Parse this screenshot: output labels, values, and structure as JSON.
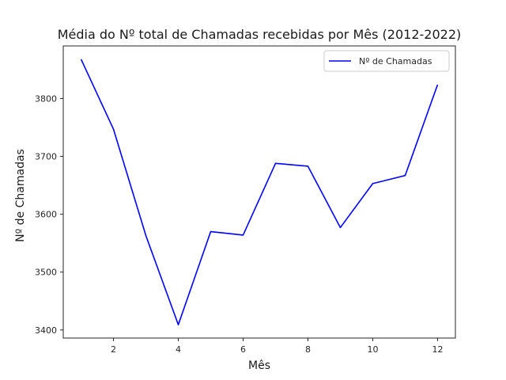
{
  "chart_data": {
    "type": "line",
    "title": "Média do Nº total de Chamadas recebidas por Mês (2012-2022)",
    "xlabel": "Mês",
    "ylabel": "Nº de Chamadas",
    "x": [
      1,
      2,
      3,
      4,
      5,
      6,
      7,
      8,
      9,
      10,
      11,
      12
    ],
    "series": [
      {
        "name": "Nº de Chamadas",
        "color": "#0000ff",
        "values": [
          3868,
          3747,
          3563,
          3409,
          3570,
          3564,
          3688,
          3683,
          3577,
          3653,
          3667,
          3824
        ]
      }
    ],
    "xlim": [
      0.45,
      12.55
    ],
    "ylim": [
      3386,
      3891
    ],
    "xticks": [
      2,
      4,
      6,
      8,
      10,
      12
    ],
    "yticks": [
      3400,
      3500,
      3600,
      3700,
      3800
    ],
    "grid": false,
    "legend_position": "top-right"
  }
}
